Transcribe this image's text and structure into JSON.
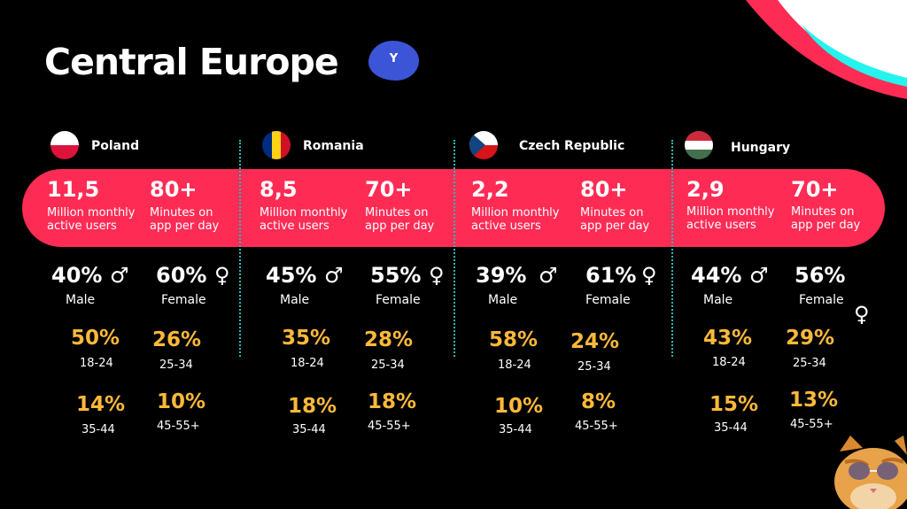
{
  "title": "Central Europe",
  "badge": {
    "letter": "Y",
    "color": "#3c55d6"
  },
  "colors": {
    "accent_bar": "#fe2c55",
    "age_pct": "#fdb93a",
    "divider": "#2ab7b7"
  },
  "countries": [
    {
      "name": "Poland",
      "flag": "poland-flag-icon",
      "mau_value": "11,5",
      "mau_label_1": "Million monthly",
      "mau_label_2": "active users",
      "min_value": "80+",
      "min_label_1": "Minutes on",
      "min_label_2": "app per day",
      "male_pct": "40%",
      "male_label": "Male",
      "female_pct": "60%",
      "female_label": "Female",
      "ages": [
        {
          "pct": "50%",
          "range": "18-24"
        },
        {
          "pct": "26%",
          "range": "25-34"
        },
        {
          "pct": "14%",
          "range": "35-44"
        },
        {
          "pct": "10%",
          "range": "45-55+"
        }
      ]
    },
    {
      "name": "Romania",
      "flag": "romania-flag-icon",
      "mau_value": "8,5",
      "mau_label_1": "Million monthly",
      "mau_label_2": "active users",
      "min_value": "70+",
      "min_label_1": "Minutes on",
      "min_label_2": "app per day",
      "male_pct": "45%",
      "male_label": "Male",
      "female_pct": "55%",
      "female_label": "Female",
      "ages": [
        {
          "pct": "35%",
          "range": "18-24"
        },
        {
          "pct": "28%",
          "range": "25-34"
        },
        {
          "pct": "18%",
          "range": "35-44"
        },
        {
          "pct": "18%",
          "range": "45-55+"
        }
      ]
    },
    {
      "name": "Czech Republic",
      "flag": "czech-flag-icon",
      "mau_value": "2,2",
      "mau_label_1": "Million monthly",
      "mau_label_2": "active users",
      "min_value": "80+",
      "min_label_1": "Minutes on",
      "min_label_2": "app per day",
      "male_pct": "39%",
      "male_label": "Male",
      "female_pct": "61%",
      "female_label": "Female",
      "ages": [
        {
          "pct": "58%",
          "range": "18-24"
        },
        {
          "pct": "24%",
          "range": "25-34"
        },
        {
          "pct": "10%",
          "range": "35-44"
        },
        {
          "pct": "8%",
          "range": "45-55+"
        }
      ]
    },
    {
      "name": "Hungary",
      "flag": "hungary-flag-icon",
      "mau_value": "2,9",
      "mau_label_1": "Million monthly",
      "mau_label_2": "active users",
      "min_value": "70+",
      "min_label_1": "Minutes on",
      "min_label_2": "app per day",
      "male_pct": "44%",
      "male_label": "Male",
      "female_pct": "56%",
      "female_label": "Female",
      "ages": [
        {
          "pct": "43%",
          "range": "18-24"
        },
        {
          "pct": "29%",
          "range": "25-34"
        },
        {
          "pct": "15%",
          "range": "35-44"
        },
        {
          "pct": "13%",
          "range": "45-55+"
        }
      ]
    }
  ],
  "symbols": {
    "male": "♂",
    "female": "♀"
  }
}
